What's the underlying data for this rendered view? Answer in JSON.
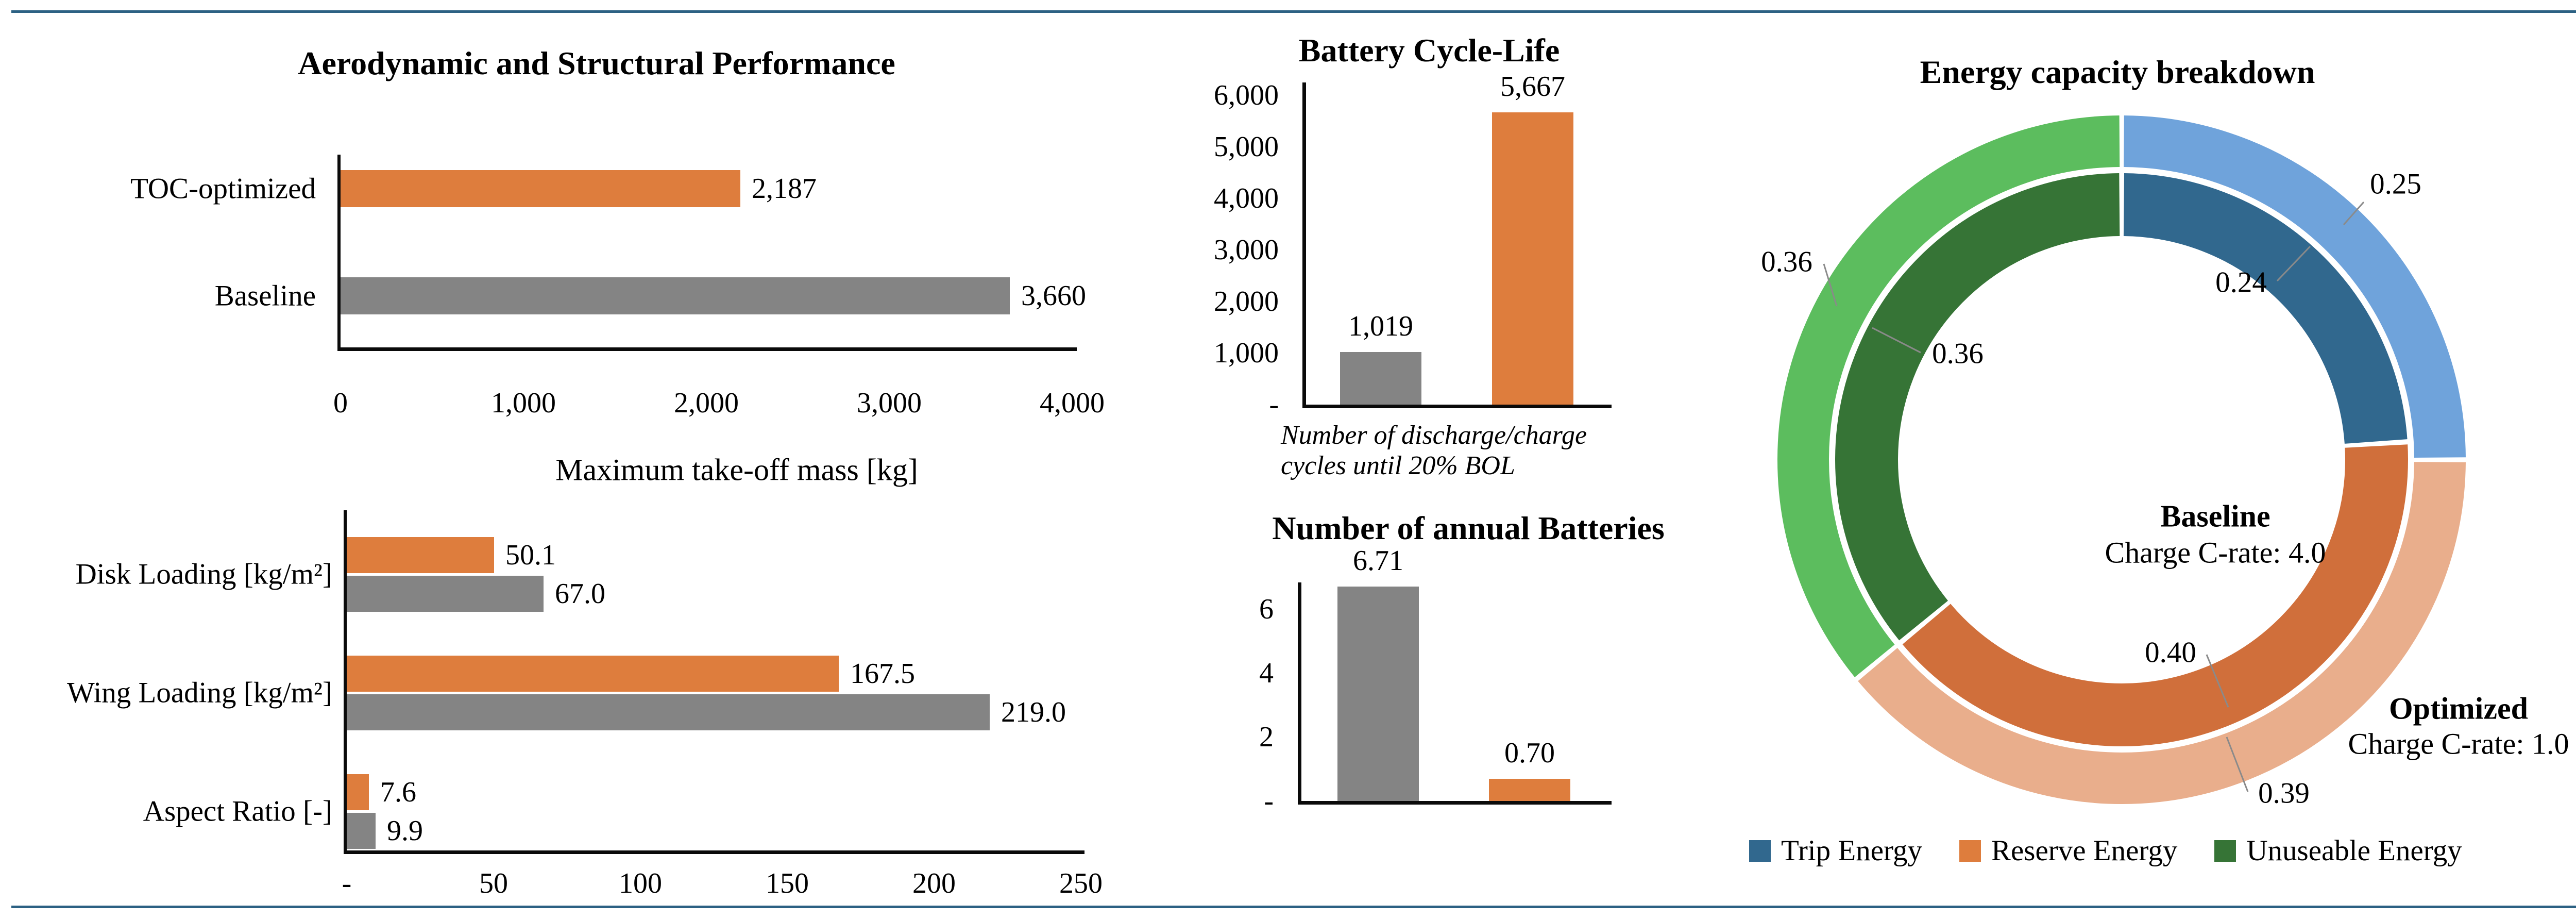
{
  "page": {
    "background": "#ffffff",
    "rule_color": "#2C6183",
    "axis_color": "#0a0a0a",
    "leader_color": "#8a8a8a"
  },
  "chart_data": [
    {
      "id": "mtom",
      "type": "bar",
      "orientation": "horizontal",
      "title": "Aerodynamic and Structural Performance",
      "categories": [
        "TOC-optimized",
        "Baseline"
      ],
      "values": [
        2187,
        3660
      ],
      "value_labels": [
        "2,187",
        "3,660"
      ],
      "bar_colors": [
        "#DE7D3D",
        "#848484"
      ],
      "xlabel": "Maximum take-off mass [kg]",
      "xlim": [
        0,
        4000
      ],
      "grid": false,
      "xticks": {
        "labels": [
          "0",
          "1,000",
          "2,000",
          "3,000",
          "4,000"
        ],
        "values": [
          0,
          1000,
          2000,
          3000,
          4000
        ]
      }
    },
    {
      "id": "params",
      "type": "grouped_bar",
      "orientation": "horizontal",
      "categories": [
        "Disk Loading [kg/m²]",
        "Wing Loading [kg/m²]",
        "Aspect Ratio [-]"
      ],
      "series": [
        {
          "name": "TOC-optimized",
          "color": "#DE7D3D",
          "values": [
            50.1,
            167.5,
            7.6
          ],
          "value_labels": [
            "50.1",
            "167.5",
            "7.6"
          ]
        },
        {
          "name": "Baseline",
          "color": "#848484",
          "values": [
            67.0,
            219.0,
            9.9
          ],
          "value_labels": [
            "67.0",
            "219.0",
            "9.9"
          ]
        }
      ],
      "xlim": [
        0,
        250
      ],
      "grid": false,
      "xticks": {
        "labels": [
          "-",
          "50",
          "100",
          "150",
          "200",
          "250"
        ],
        "values": [
          0,
          50,
          100,
          150,
          200,
          250
        ]
      }
    },
    {
      "id": "cycle",
      "type": "bar",
      "orientation": "vertical",
      "title": "Battery Cycle-Life",
      "values": [
        1019,
        5667
      ],
      "value_labels": [
        "1,019",
        "5,667"
      ],
      "bar_colors": [
        "#848484",
        "#DE7D3D"
      ],
      "ylim": [
        0,
        6000
      ],
      "grid": false,
      "yticks": {
        "labels": [
          "-",
          "1,000",
          "2,000",
          "3,000",
          "4,000",
          "5,000",
          "6,000"
        ],
        "values": [
          0,
          1000,
          2000,
          3000,
          4000,
          5000,
          6000
        ]
      },
      "caption": [
        "Number of discharge/charge",
        "cycles until 20% BOL"
      ]
    },
    {
      "id": "annual",
      "type": "bar",
      "orientation": "vertical",
      "title": "Number of annual Batteries",
      "values": [
        6.71,
        0.7
      ],
      "value_labels": [
        "6.71",
        "0.70"
      ],
      "bar_colors": [
        "#848484",
        "#DE7D3D"
      ],
      "ylim": [
        0,
        7
      ],
      "grid": false,
      "yticks": {
        "labels": [
          "-",
          "2",
          "4",
          "6"
        ],
        "values": [
          0,
          2,
          4,
          6
        ]
      }
    },
    {
      "id": "energy",
      "type": "donut",
      "title": "Energy capacity breakdown",
      "rings": [
        {
          "name": "Optimized (outer ring)",
          "segments": [
            {
              "label": "Trip Energy",
              "value": 0.25,
              "display": "0.25",
              "color": "#6FA3DB"
            },
            {
              "label": "Reserve Energy",
              "value": 0.39,
              "display": "0.39",
              "color": "#E9AE8C"
            },
            {
              "label": "Unuseable Energy",
              "value": 0.36,
              "display": "0.36",
              "color": "#5CBD5E"
            }
          ]
        },
        {
          "name": "Baseline (inner ring)",
          "segments": [
            {
              "label": "Trip Energy",
              "value": 0.24,
              "display": "0.24",
              "color": "#31688E"
            },
            {
              "label": "Reserve Energy",
              "value": 0.4,
              "display": "0.40",
              "color": "#D06F3B"
            },
            {
              "label": "Unuseable Energy",
              "value": 0.36,
              "display": "0.36",
              "color": "#367436"
            }
          ]
        }
      ],
      "center_label": {
        "line1": "Baseline",
        "line2": "Charge C-rate: 4.0"
      },
      "outer_label": {
        "line1": "Optimized",
        "line2": "Charge C-rate: 1.0"
      },
      "legend": [
        {
          "label": "Trip Energy",
          "color": "#31688E"
        },
        {
          "label": "Reserve Energy",
          "color": "#DE7D3D"
        },
        {
          "label": "Unuseable Energy",
          "color": "#367436"
        }
      ]
    }
  ]
}
